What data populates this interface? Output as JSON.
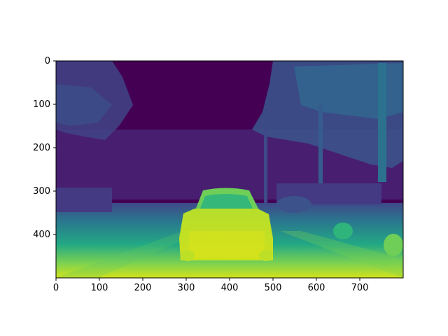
{
  "image": {
    "description_colormap": "viridis",
    "x_range": [
      0,
      800
    ],
    "y_range": [
      0,
      500
    ],
    "y_axis_inverted": true,
    "content": "depth-map"
  },
  "axes": {
    "x_ticks": [
      {
        "value": 0,
        "label": "0"
      },
      {
        "value": 100,
        "label": "100"
      },
      {
        "value": 200,
        "label": "200"
      },
      {
        "value": 300,
        "label": "300"
      },
      {
        "value": 400,
        "label": "400"
      },
      {
        "value": 500,
        "label": "500"
      },
      {
        "value": 600,
        "label": "600"
      },
      {
        "value": 700,
        "label": "700"
      }
    ],
    "y_ticks": [
      {
        "value": 0,
        "label": "0"
      },
      {
        "value": 100,
        "label": "100"
      },
      {
        "value": 200,
        "label": "200"
      },
      {
        "value": 300,
        "label": "300"
      },
      {
        "value": 400,
        "label": "400"
      }
    ]
  },
  "colors": {
    "far": "#440154",
    "mid_far": "#3b528b",
    "mid": "#21918c",
    "near": "#5ec962",
    "nearest": "#fde725",
    "car_body": "#c2df23",
    "car_highlight": "#dde318"
  }
}
